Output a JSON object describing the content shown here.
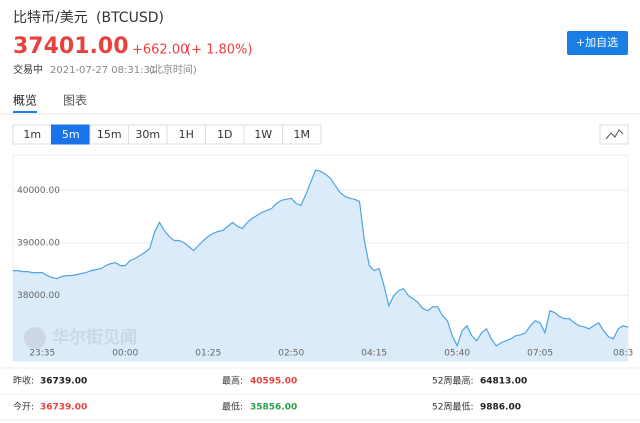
{
  "header": {
    "name": "比特币/美元",
    "symbol": "(BTCUSD)",
    "price": "37401.00",
    "change": "+662.00",
    "change_pct": "(+ 1.80%)",
    "status": "交易中",
    "time": "2021-07-27 08:31:31",
    "timezone": "(北京时间)",
    "button": "+加自选"
  },
  "tabs": [
    "概览",
    "图表"
  ],
  "intervals": [
    "1m",
    "5m",
    "15m",
    "30m",
    "1H",
    "1D",
    "1W",
    "1M"
  ],
  "active_interval": 1,
  "watermark": "华尔街见闻",
  "chart_data": {
    "type": "line",
    "color": "#4fa3e3",
    "fill": "#dcebfa",
    "ylim": [
      36760,
      40670
    ],
    "yticks": [
      {
        "value": 38000,
        "label": "38000.00"
      },
      {
        "value": 39000,
        "label": "39000.00"
      },
      {
        "value": 40000,
        "label": "40000.00"
      }
    ],
    "categories": [
      null,
      null,
      null,
      null,
      null,
      null,
      "23:35",
      null,
      null,
      null,
      null,
      null,
      null,
      null,
      null,
      null,
      null,
      null,
      null,
      null,
      null,
      null,
      null,
      "00:00",
      null,
      null,
      null,
      null,
      null,
      null,
      null,
      null,
      null,
      null,
      null,
      null,
      null,
      null,
      null,
      null,
      "01:25",
      null,
      null,
      null,
      null,
      null,
      null,
      null,
      null,
      null,
      null,
      null,
      null,
      null,
      null,
      null,
      null,
      "02:50",
      null,
      null,
      null,
      null,
      null,
      null,
      null,
      null,
      null,
      null,
      null,
      null,
      null,
      null,
      null,
      null,
      "04:15",
      null,
      null,
      null,
      null,
      null,
      null,
      null,
      null,
      null,
      null,
      null,
      null,
      null,
      null,
      null,
      null,
      "05:40",
      null,
      null,
      null,
      null,
      null,
      null,
      null,
      null,
      null,
      null,
      null,
      null,
      null,
      null,
      null,
      null,
      "07:05",
      null,
      null,
      null,
      null,
      null,
      null,
      null,
      null,
      null,
      null,
      null,
      null,
      null,
      null,
      null,
      null,
      "08:3",
      null
    ],
    "values": [
      38476,
      38476,
      38457,
      38457,
      38438,
      38438,
      38438,
      38381,
      38343,
      38324,
      38362,
      38381,
      38381,
      38400,
      38419,
      38438,
      38476,
      38495,
      38514,
      38571,
      38609,
      38628,
      38571,
      38571,
      38667,
      38705,
      38762,
      38819,
      38895,
      39200,
      39390,
      39238,
      39124,
      39048,
      39048,
      39009,
      38933,
      38857,
      38952,
      39048,
      39124,
      39181,
      39219,
      39238,
      39314,
      39390,
      39314,
      39276,
      39390,
      39467,
      39524,
      39581,
      39619,
      39657,
      39752,
      39810,
      39829,
      39848,
      39752,
      39714,
      39924,
      40152,
      40381,
      40362,
      40305,
      40229,
      40095,
      39962,
      39886,
      39848,
      39829,
      39790,
      39048,
      38571,
      38476,
      38514,
      38190,
      37809,
      38000,
      38095,
      38133,
      38000,
      37943,
      37866,
      37752,
      37714,
      37790,
      37790,
      37619,
      37524,
      37238,
      37048,
      37333,
      37429,
      37238,
      37143,
      37295,
      37371,
      37181,
      37048,
      37105,
      37143,
      37181,
      37238,
      37257,
      37295,
      37429,
      37524,
      37486,
      37295,
      37714,
      37676,
      37600,
      37562,
      37562,
      37486,
      37429,
      37410,
      37371,
      37429,
      37486,
      37333,
      37219,
      37181,
      37371,
      37429,
      37401
    ]
  },
  "stats": [
    [
      [
        "昨收:",
        "36739.00"
      ],
      [
        "最高:",
        "40595.00"
      ],
      [
        "52周最高:",
        "64813.00"
      ]
    ],
    [
      [
        "今开:",
        "36739.00"
      ],
      [
        "最低:",
        "35856.00"
      ],
      [
        "52周最低:",
        "9886.00"
      ]
    ]
  ]
}
